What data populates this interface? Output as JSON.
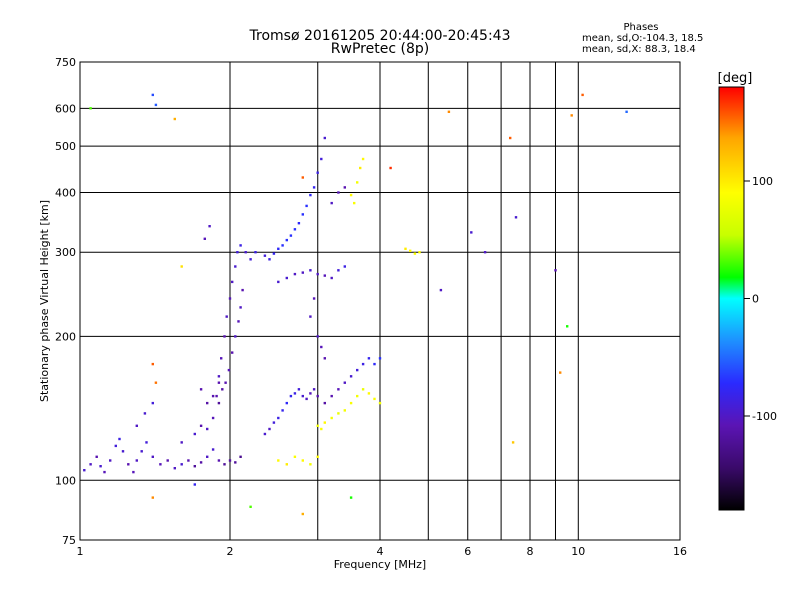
{
  "chart_data": {
    "type": "scatter",
    "title": "Tromsø 20161205 20:44:00-20:45:43",
    "subtitle": "RwPretec (8p)",
    "xlabel": "Frequency [MHz]",
    "ylabel": "Stationary phase Virtual Height [km]",
    "x_scale": "log",
    "y_scale": "log",
    "xlim": [
      1,
      16
    ],
    "ylim": [
      75,
      750
    ],
    "x_ticks": [
      1,
      2,
      4,
      6,
      8,
      10,
      16
    ],
    "x_minor_grid": [
      3,
      5,
      7,
      9
    ],
    "y_ticks": [
      75,
      100,
      200,
      300,
      400,
      500,
      600,
      750
    ],
    "grid": true,
    "legend_box": {
      "title": "Phases",
      "lines": [
        "mean, sd,O:-104.3, 18.5",
        "mean, sd,X:  88.3, 18.4"
      ],
      "position": "top-right"
    },
    "colorbar": {
      "label": "[deg]",
      "ticks": [
        100,
        0,
        -100
      ],
      "range": [
        -180,
        180
      ],
      "colors": [
        "#000000",
        "#3a0a6a",
        "#5b14b4",
        "#2a2aff",
        "#1e90ff",
        "#00ffff",
        "#00ff00",
        "#c8ff00",
        "#ffff00",
        "#ffa500",
        "#ff0000"
      ]
    },
    "series": [
      {
        "points": [
          [
            1.02,
            105,
            -95
          ],
          [
            1.05,
            108,
            -100
          ],
          [
            1.08,
            112,
            -110
          ],
          [
            1.1,
            107,
            -95
          ],
          [
            1.12,
            104,
            -105
          ],
          [
            1.15,
            110,
            -100
          ],
          [
            1.18,
            118,
            -90
          ],
          [
            1.2,
            122,
            -85
          ],
          [
            1.22,
            115,
            -95
          ],
          [
            1.25,
            108,
            -110
          ],
          [
            1.28,
            104,
            -105
          ],
          [
            1.3,
            110,
            -100
          ],
          [
            1.33,
            115,
            -95
          ],
          [
            1.36,
            120,
            -90
          ],
          [
            1.4,
            112,
            -100
          ],
          [
            1.45,
            108,
            -105
          ],
          [
            1.5,
            110,
            -110
          ],
          [
            1.55,
            106,
            -100
          ],
          [
            1.6,
            108,
            -95
          ],
          [
            1.65,
            110,
            -110
          ],
          [
            1.7,
            107,
            -120
          ],
          [
            1.75,
            109,
            -115
          ],
          [
            1.8,
            112,
            -100
          ],
          [
            1.85,
            116,
            -95
          ],
          [
            1.9,
            110,
            -110
          ],
          [
            1.95,
            108,
            -120
          ],
          [
            2.0,
            110,
            -115
          ],
          [
            2.05,
            109,
            -120
          ],
          [
            2.1,
            112,
            -125
          ],
          [
            1.3,
            130,
            -100
          ],
          [
            1.35,
            138,
            -95
          ],
          [
            1.4,
            145,
            -90
          ],
          [
            1.6,
            120,
            -100
          ],
          [
            1.7,
            125,
            -95
          ],
          [
            1.75,
            130,
            -110
          ],
          [
            1.8,
            128,
            -100
          ]
        ]
      },
      {
        "points": [
          [
            1.85,
            135,
            -105
          ],
          [
            1.88,
            150,
            -110
          ],
          [
            1.9,
            165,
            -100
          ],
          [
            1.92,
            180,
            -105
          ],
          [
            1.95,
            200,
            -110
          ],
          [
            1.97,
            220,
            -100
          ],
          [
            2.0,
            240,
            -105
          ],
          [
            2.02,
            260,
            -100
          ],
          [
            2.05,
            280,
            -95
          ],
          [
            2.07,
            300,
            -90
          ],
          [
            2.1,
            310,
            -85
          ],
          [
            1.9,
            145,
            -120
          ],
          [
            1.93,
            155,
            -115
          ],
          [
            1.96,
            160,
            -110
          ],
          [
            1.99,
            170,
            -105
          ],
          [
            2.02,
            185,
            -110
          ],
          [
            2.05,
            200,
            -100
          ],
          [
            2.08,
            215,
            -105
          ],
          [
            2.1,
            230,
            -100
          ],
          [
            2.12,
            250,
            -110
          ],
          [
            1.75,
            155,
            -110
          ],
          [
            1.8,
            145,
            -115
          ],
          [
            1.85,
            150,
            -110
          ],
          [
            1.9,
            160,
            -110
          ],
          [
            2.15,
            300,
            -95
          ],
          [
            2.2,
            290,
            -90
          ],
          [
            2.25,
            300,
            -85
          ],
          [
            1.82,
            340,
            -100
          ],
          [
            1.78,
            320,
            -105
          ]
        ]
      },
      {
        "points": [
          [
            2.35,
            295,
            -90
          ],
          [
            2.4,
            290,
            -85
          ],
          [
            2.45,
            298,
            -80
          ],
          [
            2.5,
            305,
            -75
          ],
          [
            2.55,
            310,
            -70
          ],
          [
            2.6,
            318,
            -70
          ],
          [
            2.65,
            325,
            -70
          ],
          [
            2.7,
            335,
            -70
          ],
          [
            2.75,
            345,
            -75
          ],
          [
            2.8,
            360,
            -70
          ],
          [
            2.85,
            375,
            -70
          ],
          [
            2.9,
            395,
            -75
          ],
          [
            2.95,
            410,
            -80
          ],
          [
            3.0,
            440,
            -85
          ],
          [
            3.05,
            470,
            -90
          ],
          [
            3.1,
            520,
            -95
          ],
          [
            2.5,
            260,
            -95
          ],
          [
            2.6,
            265,
            -95
          ],
          [
            2.7,
            270,
            -100
          ],
          [
            2.8,
            272,
            -100
          ],
          [
            2.9,
            275,
            -95
          ],
          [
            3.0,
            270,
            -100
          ],
          [
            3.1,
            268,
            -105
          ],
          [
            3.2,
            265,
            -100
          ],
          [
            3.3,
            275,
            -90
          ],
          [
            3.4,
            280,
            -85
          ],
          [
            3.2,
            380,
            -100
          ],
          [
            3.3,
            400,
            -105
          ],
          [
            3.4,
            410,
            -110
          ]
        ]
      },
      {
        "points": [
          [
            2.35,
            125,
            -95
          ],
          [
            2.4,
            128,
            -100
          ],
          [
            2.45,
            132,
            -90
          ],
          [
            2.5,
            135,
            -85
          ],
          [
            2.55,
            140,
            -80
          ],
          [
            2.6,
            145,
            -75
          ],
          [
            2.65,
            150,
            -80
          ],
          [
            2.7,
            152,
            -85
          ],
          [
            2.75,
            155,
            -90
          ],
          [
            2.8,
            150,
            -95
          ],
          [
            2.85,
            148,
            -100
          ],
          [
            2.9,
            152,
            -105
          ],
          [
            2.95,
            155,
            -100
          ],
          [
            3.0,
            150,
            -110
          ],
          [
            3.1,
            145,
            -115
          ],
          [
            3.2,
            150,
            -110
          ],
          [
            3.3,
            155,
            -105
          ],
          [
            3.4,
            160,
            -100
          ],
          [
            3.5,
            165,
            -95
          ],
          [
            3.6,
            170,
            -90
          ],
          [
            3.7,
            175,
            -85
          ],
          [
            3.8,
            180,
            -80
          ],
          [
            3.9,
            175,
            -75
          ],
          [
            4.0,
            180,
            -70
          ],
          [
            3.0,
            200,
            -100
          ],
          [
            3.05,
            190,
            -105
          ],
          [
            3.1,
            180,
            -110
          ],
          [
            2.9,
            220,
            -100
          ],
          [
            2.95,
            240,
            -105
          ]
        ]
      },
      {
        "points": [
          [
            3.0,
            130,
            100
          ],
          [
            3.05,
            128,
            105
          ],
          [
            3.1,
            132,
            110
          ],
          [
            3.2,
            135,
            100
          ],
          [
            3.3,
            138,
            95
          ],
          [
            3.4,
            140,
            100
          ],
          [
            3.5,
            145,
            105
          ],
          [
            3.6,
            150,
            100
          ],
          [
            3.7,
            155,
            95
          ],
          [
            3.8,
            152,
            110
          ],
          [
            3.9,
            148,
            105
          ],
          [
            4.0,
            145,
            100
          ],
          [
            2.5,
            110,
            110
          ],
          [
            2.6,
            108,
            115
          ],
          [
            2.7,
            112,
            105
          ],
          [
            2.8,
            110,
            110
          ],
          [
            2.9,
            108,
            100
          ],
          [
            3.0,
            112,
            110
          ],
          [
            3.5,
            395,
            110
          ],
          [
            3.55,
            380,
            105
          ],
          [
            3.6,
            420,
            100
          ],
          [
            3.65,
            450,
            115
          ],
          [
            3.7,
            470,
            110
          ],
          [
            4.5,
            305,
            115
          ],
          [
            4.6,
            302,
            110
          ],
          [
            4.7,
            298,
            105
          ],
          [
            4.8,
            300,
            110
          ]
        ]
      },
      {
        "points": [
          [
            1.05,
            600,
            50
          ],
          [
            1.4,
            640,
            -60
          ],
          [
            1.42,
            610,
            -55
          ],
          [
            1.55,
            570,
            140
          ],
          [
            1.6,
            280,
            120
          ],
          [
            1.4,
            175,
            160
          ],
          [
            1.42,
            160,
            155
          ],
          [
            2.8,
            430,
            160
          ],
          [
            4.2,
            450,
            170
          ],
          [
            5.5,
            590,
            150
          ],
          [
            7.3,
            520,
            160
          ],
          [
            9.7,
            580,
            150
          ],
          [
            10.2,
            640,
            160
          ],
          [
            12.5,
            590,
            -50
          ],
          [
            9.5,
            210,
            40
          ],
          [
            9.2,
            168,
            150
          ],
          [
            7.4,
            120,
            130
          ],
          [
            2.2,
            88,
            50
          ],
          [
            2.8,
            85,
            140
          ],
          [
            3.5,
            92,
            40
          ],
          [
            1.7,
            98,
            -80
          ],
          [
            1.4,
            92,
            150
          ],
          [
            5.3,
            250,
            -100
          ],
          [
            6.1,
            330,
            -95
          ],
          [
            6.5,
            300,
            -100
          ],
          [
            7.5,
            355,
            -95
          ],
          [
            9.0,
            275,
            -110
          ]
        ]
      }
    ]
  }
}
